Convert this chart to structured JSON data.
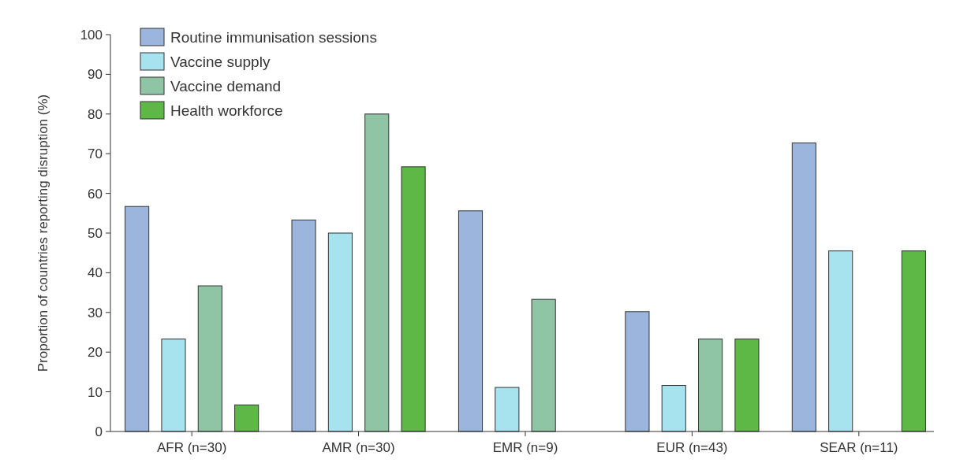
{
  "chart_data": {
    "type": "bar",
    "ylabel": "Proportion of countries reporting disruption (%)",
    "categories": [
      "AFR (n=30)",
      "AMR (n=30)",
      "EMR (n=9)",
      "EUR (n=43)",
      "SEAR (n=11)"
    ],
    "series": [
      {
        "name": "Routine immunisation sessions",
        "color": "#9bb5dc",
        "values": [
          56.7,
          53.3,
          55.6,
          30.2,
          72.7
        ]
      },
      {
        "name": "Vaccine supply",
        "color": "#a6e3ee",
        "values": [
          23.3,
          50,
          11.1,
          11.6,
          45.5
        ]
      },
      {
        "name": "Vaccine demand",
        "color": "#8fc4a4",
        "values": [
          36.7,
          80,
          33.3,
          23.3,
          null
        ]
      },
      {
        "name": "Health workforce",
        "color": "#5db845",
        "values": [
          6.7,
          66.7,
          null,
          23.3,
          45.5
        ]
      }
    ],
    "ylim": [
      0,
      100
    ],
    "yticks": [
      0,
      10,
      20,
      30,
      40,
      50,
      60,
      70,
      80,
      90,
      100
    ],
    "grid": false,
    "legend": "top left"
  }
}
